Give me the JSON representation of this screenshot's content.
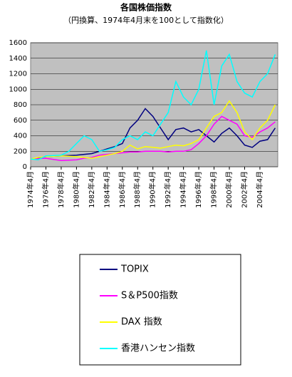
{
  "chart_data": {
    "type": "line",
    "title": "各国株価指数",
    "subtitle": "（円換算、1974年4月末を100として指数化）",
    "x": [
      "1974-04",
      "1975-04",
      "1976-04",
      "1977-04",
      "1978-04",
      "1979-04",
      "1980-04",
      "1981-04",
      "1982-04",
      "1983-04",
      "1984-04",
      "1985-04",
      "1986-04",
      "1987-04",
      "1988-04",
      "1989-04",
      "1990-04",
      "1991-04",
      "1992-04",
      "1993-04",
      "1994-04",
      "1995-04",
      "1996-04",
      "1997-04",
      "1998-04",
      "1999-04",
      "2000-04",
      "2001-04",
      "2002-04",
      "2003-04",
      "2004-04",
      "2005-04",
      "2006-04"
    ],
    "series": [
      {
        "name": "TOPIX",
        "color": "#000080",
        "values": [
          100,
          115,
          130,
          135,
          140,
          145,
          150,
          160,
          170,
          200,
          230,
          260,
          300,
          500,
          600,
          750,
          650,
          500,
          350,
          480,
          500,
          450,
          480,
          400,
          320,
          430,
          500,
          400,
          280,
          250,
          330,
          350,
          500
        ]
      },
      {
        "name": "S＆P500指数",
        "color": "#ff00ff",
        "values": [
          100,
          105,
          110,
          95,
          80,
          85,
          90,
          110,
          120,
          150,
          160,
          170,
          180,
          190,
          190,
          200,
          200,
          200,
          190,
          200,
          200,
          220,
          300,
          400,
          550,
          650,
          600,
          550,
          400,
          380,
          450,
          500,
          580
        ]
      },
      {
        "name": "DAX 指数",
        "color": "#ffff00",
        "values": [
          100,
          120,
          130,
          135,
          140,
          135,
          130,
          120,
          110,
          130,
          150,
          170,
          200,
          280,
          230,
          260,
          250,
          240,
          260,
          280,
          270,
          300,
          350,
          500,
          650,
          700,
          850,
          700,
          450,
          350,
          500,
          600,
          800
        ]
      },
      {
        "name": "香港ハンセン指数",
        "color": "#00ffff",
        "values": [
          100,
          90,
          140,
          145,
          150,
          200,
          300,
          400,
          350,
          200,
          220,
          250,
          350,
          400,
          350,
          450,
          400,
          550,
          700,
          1100,
          900,
          800,
          1000,
          1500,
          800,
          1300,
          1450,
          1100,
          950,
          900,
          1100,
          1200,
          1450
        ]
      }
    ],
    "xlim": [
      "1974-04",
      "2006-08"
    ],
    "xticks": [
      {
        "value": "1974-04",
        "label": "1974年4月"
      },
      {
        "value": "1976-04",
        "label": "1976年4月"
      },
      {
        "value": "1978-04",
        "label": "1978年4月"
      },
      {
        "value": "1980-04",
        "label": "1980年4月"
      },
      {
        "value": "1982-04",
        "label": "1982年4月"
      },
      {
        "value": "1984-04",
        "label": "1984年4月"
      },
      {
        "value": "1986-04",
        "label": "1986年4月"
      },
      {
        "value": "1988-04",
        "label": "1988年4月"
      },
      {
        "value": "1990-04",
        "label": "1990年4月"
      },
      {
        "value": "1992-04",
        "label": "1992年4月"
      },
      {
        "value": "1994-04",
        "label": "1994年4月"
      },
      {
        "value": "1996-04",
        "label": "1996年4月"
      },
      {
        "value": "1998-04",
        "label": "1998年4月"
      },
      {
        "value": "2000-04",
        "label": "2000年4月"
      },
      {
        "value": "2002-04",
        "label": "2002年4月"
      },
      {
        "value": "2004-04",
        "label": "2004年4月"
      }
    ],
    "ylim": [
      0,
      1600
    ],
    "yticks": [
      0,
      200,
      400,
      600,
      800,
      1000,
      1200,
      1400,
      1600
    ],
    "grid": true,
    "legend": "bottom"
  }
}
